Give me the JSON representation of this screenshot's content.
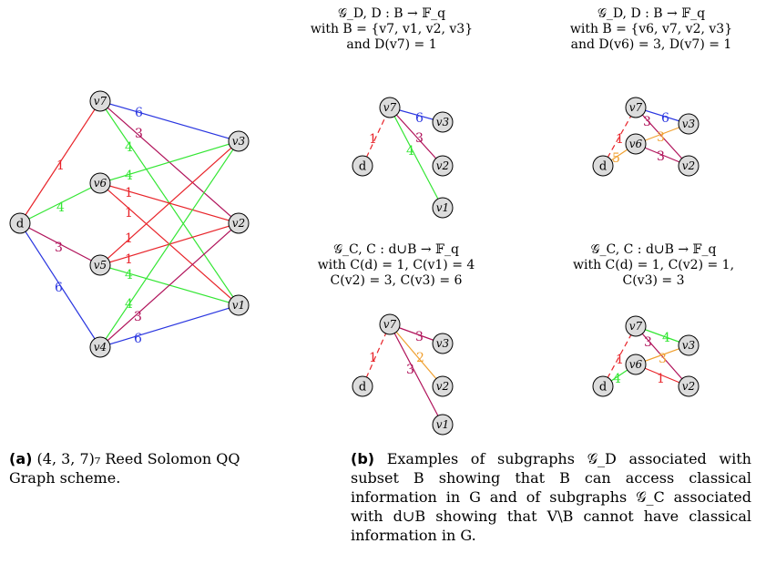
{
  "colors": {
    "red": "#e8242a",
    "green": "#33e633",
    "blue": "#2a36e0",
    "purple": "#b0125a",
    "orange": "#f0a030",
    "node_fill": "#dcdcdc"
  },
  "main_graph": {
    "nodes": [
      "d",
      "v7",
      "v6",
      "v5",
      "v4",
      "v3",
      "v2",
      "v1"
    ],
    "edge_labels": {
      "d_v7": "1",
      "d_v6": "4",
      "d_v5": "3",
      "d_v4": "6",
      "v7_v3": "6",
      "v7_v2": "3",
      "v7_v1": "4",
      "v6_v3": "4",
      "v6_v2": "1",
      "v6_v1": "1",
      "v5_v3": "1",
      "v5_v2": "1",
      "v5_v1": "4",
      "v4_v3": "4",
      "v4_v2": "3",
      "v4_v1": "6"
    }
  },
  "subgraph_labels": {
    "top_left": [
      "𝒢_D, D : B → 𝔽_q",
      "with B = {v7, v1, v2, v3}",
      "and D(v7) = 1"
    ],
    "top_right": [
      "𝒢_D, D : B → 𝔽_q",
      "with B = {v6, v7, v2, v3}",
      "and D(v6) = 3, D(v7) = 1"
    ],
    "bottom_left": [
      "𝒢_C, C : d∪B → 𝔽_q",
      "with C(d) = 1, C(v1) = 4",
      "C(v2) = 3, C(v3) = 6"
    ],
    "bottom_right": [
      "𝒢_C, C : d∪B → 𝔽_q",
      "with C(d) = 1, C(v2) = 1,",
      "C(v3) = 3"
    ]
  },
  "sub_edge_labels": {
    "tl": {
      "d_v7": "1",
      "v7_v3": "6",
      "v7_v2": "3",
      "v7_v1": "4"
    },
    "tr": {
      "d_v7": "1",
      "d_v6": "5",
      "v7_v3": "6",
      "v7_v2": "3",
      "v6_v3": "3",
      "v6_v2": "3"
    },
    "bl": {
      "d_v7": "1",
      "v7_v3": "3",
      "v7_v2": "2",
      "v7_v1": "3"
    },
    "br": {
      "d_v7": "1",
      "d_v6": "4",
      "v7_v3": "4",
      "v7_v2": "3",
      "v6_v3": "3",
      "v6_v2": "1"
    }
  },
  "captions": {
    "a_tag": "(a)",
    "a_text": "(4, 3, 7)₇ Reed Solomon QQ Graph scheme.",
    "b_tag": "(b)",
    "b_text": "Examples of subgraphs 𝒢_D associated with subset B showing that B can access classical information in G and of subgraphs 𝒢_C associated with d∪B showing that V\\B cannot have classical information in G."
  }
}
